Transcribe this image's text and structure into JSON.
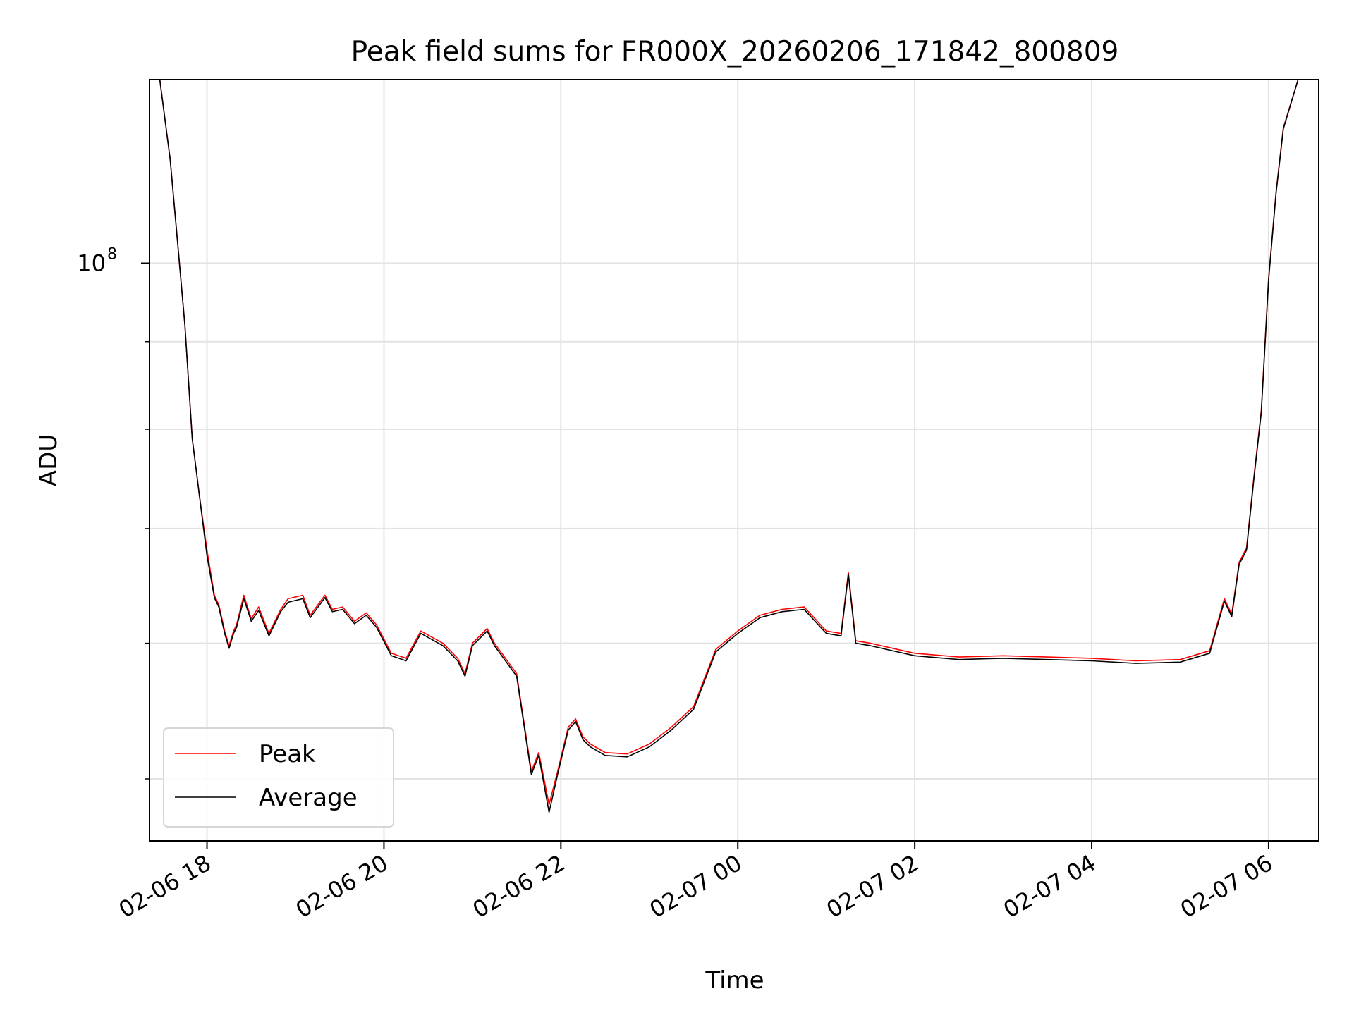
{
  "chart_data": {
    "type": "line",
    "title": "Peak field sums for FR000X_20260206_171842_800809",
    "xlabel": "Time",
    "ylabel": "ADU",
    "yscale": "log",
    "grid": true,
    "legend_placement": "lower-left",
    "xlim": [
      "2026-02-06 17:21",
      "2026-02-07 06:34"
    ],
    "ylim": [
      46000000,
      128000000
    ],
    "x_ticks": [
      {
        "t": "2026-02-06 18:00",
        "label": "02-06 18"
      },
      {
        "t": "2026-02-06 20:00",
        "label": "02-06 20"
      },
      {
        "t": "2026-02-06 22:00",
        "label": "02-06 22"
      },
      {
        "t": "2026-02-07 00:00",
        "label": "02-07 00"
      },
      {
        "t": "2026-02-07 02:00",
        "label": "02-07 02"
      },
      {
        "t": "2026-02-07 04:00",
        "label": "02-07 04"
      },
      {
        "t": "2026-02-07 06:00",
        "label": "02-07 06"
      }
    ],
    "y_major_tick": {
      "value": 100000000,
      "label_base": "10",
      "label_exp": "8"
    },
    "y_minor_ticks": [
      50000000,
      60000000,
      70000000,
      80000000,
      90000000
    ],
    "series": [
      {
        "name": "Peak",
        "color": "#ff0000",
        "points": [
          [
            "2026-02-06 17:28",
            128000000
          ],
          [
            "2026-02-06 17:35",
            115000000
          ],
          [
            "2026-02-06 17:40",
            103000000
          ],
          [
            "2026-02-06 17:45",
            92000000
          ],
          [
            "2026-02-06 17:50",
            79000000
          ],
          [
            "2026-02-06 17:55",
            73000000
          ],
          [
            "2026-02-06 18:00",
            68000000
          ],
          [
            "2026-02-06 18:05",
            64000000
          ],
          [
            "2026-02-06 18:08",
            63200000
          ],
          [
            "2026-02-06 18:12",
            61000000
          ],
          [
            "2026-02-06 18:15",
            59800000
          ],
          [
            "2026-02-06 18:18",
            61000000
          ],
          [
            "2026-02-06 18:20",
            61500000
          ],
          [
            "2026-02-06 18:25",
            64000000
          ],
          [
            "2026-02-06 18:30",
            62000000
          ],
          [
            "2026-02-06 18:35",
            63000000
          ],
          [
            "2026-02-06 18:42",
            60800000
          ],
          [
            "2026-02-06 18:50",
            62800000
          ],
          [
            "2026-02-06 18:55",
            63700000
          ],
          [
            "2026-02-06 19:05",
            64000000
          ],
          [
            "2026-02-06 19:10",
            62300000
          ],
          [
            "2026-02-06 19:20",
            64000000
          ],
          [
            "2026-02-06 19:25",
            62800000
          ],
          [
            "2026-02-06 19:32",
            63000000
          ],
          [
            "2026-02-06 19:40",
            61800000
          ],
          [
            "2026-02-06 19:48",
            62500000
          ],
          [
            "2026-02-06 19:55",
            61500000
          ],
          [
            "2026-02-06 20:05",
            59200000
          ],
          [
            "2026-02-06 20:15",
            58800000
          ],
          [
            "2026-02-06 20:25",
            61000000
          ],
          [
            "2026-02-06 20:40",
            60000000
          ],
          [
            "2026-02-06 20:50",
            58800000
          ],
          [
            "2026-02-06 20:55",
            57600000
          ],
          [
            "2026-02-06 21:00",
            60000000
          ],
          [
            "2026-02-06 21:10",
            61200000
          ],
          [
            "2026-02-06 21:15",
            60000000
          ],
          [
            "2026-02-06 21:30",
            57600000
          ],
          [
            "2026-02-06 21:40",
            50500000
          ],
          [
            "2026-02-06 21:45",
            51800000
          ],
          [
            "2026-02-06 21:52",
            48300000
          ],
          [
            "2026-02-06 21:58",
            50600000
          ],
          [
            "2026-02-06 22:05",
            53600000
          ],
          [
            "2026-02-06 22:10",
            54200000
          ],
          [
            "2026-02-06 22:15",
            52900000
          ],
          [
            "2026-02-06 22:20",
            52400000
          ],
          [
            "2026-02-06 22:30",
            51800000
          ],
          [
            "2026-02-06 22:45",
            51700000
          ],
          [
            "2026-02-06 23:00",
            52400000
          ],
          [
            "2026-02-06 23:15",
            53600000
          ],
          [
            "2026-02-06 23:30",
            55100000
          ],
          [
            "2026-02-06 23:45",
            59500000
          ],
          [
            "2026-02-07 00:00",
            61000000
          ],
          [
            "2026-02-07 00:15",
            62300000
          ],
          [
            "2026-02-07 00:30",
            62800000
          ],
          [
            "2026-02-07 00:45",
            63000000
          ],
          [
            "2026-02-07 01:00",
            61000000
          ],
          [
            "2026-02-07 01:10",
            60800000
          ],
          [
            "2026-02-07 01:15",
            66000000
          ],
          [
            "2026-02-07 01:20",
            60200000
          ],
          [
            "2026-02-07 01:30",
            60000000
          ],
          [
            "2026-02-07 02:00",
            59200000
          ],
          [
            "2026-02-07 02:30",
            58900000
          ],
          [
            "2026-02-07 03:00",
            59000000
          ],
          [
            "2026-02-07 03:30",
            58900000
          ],
          [
            "2026-02-07 04:00",
            58800000
          ],
          [
            "2026-02-07 04:30",
            58600000
          ],
          [
            "2026-02-07 05:00",
            58700000
          ],
          [
            "2026-02-07 05:20",
            59400000
          ],
          [
            "2026-02-07 05:30",
            63700000
          ],
          [
            "2026-02-07 05:35",
            62400000
          ],
          [
            "2026-02-07 05:40",
            66900000
          ],
          [
            "2026-02-07 05:45",
            68200000
          ],
          [
            "2026-02-07 05:50",
            75000000
          ],
          [
            "2026-02-07 05:55",
            82000000
          ],
          [
            "2026-02-07 06:00",
            98000000
          ],
          [
            "2026-02-07 06:05",
            110000000
          ],
          [
            "2026-02-07 06:10",
            120000000
          ],
          [
            "2026-02-07 06:20",
            128000000
          ]
        ]
      },
      {
        "name": "Average",
        "color": "#000000",
        "points": [
          [
            "2026-02-06 17:28",
            128000000
          ],
          [
            "2026-02-06 17:35",
            115000000
          ],
          [
            "2026-02-06 17:40",
            103000000
          ],
          [
            "2026-02-06 17:45",
            92000000
          ],
          [
            "2026-02-06 17:50",
            79000000
          ],
          [
            "2026-02-06 17:55",
            73000000
          ],
          [
            "2026-02-06 18:00",
            67500000
          ],
          [
            "2026-02-06 18:05",
            63800000
          ],
          [
            "2026-02-06 18:08",
            63000000
          ],
          [
            "2026-02-06 18:12",
            60800000
          ],
          [
            "2026-02-06 18:15",
            59600000
          ],
          [
            "2026-02-06 18:18",
            60800000
          ],
          [
            "2026-02-06 18:20",
            61300000
          ],
          [
            "2026-02-06 18:25",
            63700000
          ],
          [
            "2026-02-06 18:30",
            61800000
          ],
          [
            "2026-02-06 18:35",
            62700000
          ],
          [
            "2026-02-06 18:42",
            60600000
          ],
          [
            "2026-02-06 18:50",
            62600000
          ],
          [
            "2026-02-06 18:55",
            63400000
          ],
          [
            "2026-02-06 19:05",
            63700000
          ],
          [
            "2026-02-06 19:10",
            62100000
          ],
          [
            "2026-02-06 19:20",
            63800000
          ],
          [
            "2026-02-06 19:25",
            62600000
          ],
          [
            "2026-02-06 19:32",
            62800000
          ],
          [
            "2026-02-06 19:40",
            61600000
          ],
          [
            "2026-02-06 19:48",
            62300000
          ],
          [
            "2026-02-06 19:55",
            61300000
          ],
          [
            "2026-02-06 20:05",
            59000000
          ],
          [
            "2026-02-06 20:15",
            58600000
          ],
          [
            "2026-02-06 20:25",
            60800000
          ],
          [
            "2026-02-06 20:40",
            59800000
          ],
          [
            "2026-02-06 20:50",
            58600000
          ],
          [
            "2026-02-06 20:55",
            57400000
          ],
          [
            "2026-02-06 21:00",
            59800000
          ],
          [
            "2026-02-06 21:10",
            61000000
          ],
          [
            "2026-02-06 21:15",
            59800000
          ],
          [
            "2026-02-06 21:30",
            57400000
          ],
          [
            "2026-02-06 21:40",
            50300000
          ],
          [
            "2026-02-06 21:45",
            51600000
          ],
          [
            "2026-02-06 21:52",
            47800000
          ],
          [
            "2026-02-06 21:58",
            50400000
          ],
          [
            "2026-02-06 22:05",
            53400000
          ],
          [
            "2026-02-06 22:10",
            54000000
          ],
          [
            "2026-02-06 22:15",
            52700000
          ],
          [
            "2026-02-06 22:20",
            52200000
          ],
          [
            "2026-02-06 22:30",
            51600000
          ],
          [
            "2026-02-06 22:45",
            51500000
          ],
          [
            "2026-02-06 23:00",
            52200000
          ],
          [
            "2026-02-06 23:15",
            53400000
          ],
          [
            "2026-02-06 23:30",
            54900000
          ],
          [
            "2026-02-06 23:45",
            59300000
          ],
          [
            "2026-02-07 00:00",
            60800000
          ],
          [
            "2026-02-07 00:15",
            62100000
          ],
          [
            "2026-02-07 00:30",
            62600000
          ],
          [
            "2026-02-07 00:45",
            62800000
          ],
          [
            "2026-02-07 01:00",
            60800000
          ],
          [
            "2026-02-07 01:10",
            60600000
          ],
          [
            "2026-02-07 01:15",
            65800000
          ],
          [
            "2026-02-07 01:20",
            60000000
          ],
          [
            "2026-02-07 01:30",
            59800000
          ],
          [
            "2026-02-07 02:00",
            59000000
          ],
          [
            "2026-02-07 02:30",
            58700000
          ],
          [
            "2026-02-07 03:00",
            58800000
          ],
          [
            "2026-02-07 03:30",
            58700000
          ],
          [
            "2026-02-07 04:00",
            58600000
          ],
          [
            "2026-02-07 04:30",
            58400000
          ],
          [
            "2026-02-07 05:00",
            58500000
          ],
          [
            "2026-02-07 05:20",
            59200000
          ],
          [
            "2026-02-07 05:30",
            63500000
          ],
          [
            "2026-02-07 05:35",
            62200000
          ],
          [
            "2026-02-07 05:40",
            66700000
          ],
          [
            "2026-02-07 05:45",
            68000000
          ],
          [
            "2026-02-07 05:50",
            74800000
          ],
          [
            "2026-02-07 05:55",
            81800000
          ],
          [
            "2026-02-07 06:00",
            97800000
          ],
          [
            "2026-02-07 06:05",
            109800000
          ],
          [
            "2026-02-07 06:10",
            119800000
          ],
          [
            "2026-02-07 06:20",
            128000000
          ]
        ]
      }
    ]
  }
}
